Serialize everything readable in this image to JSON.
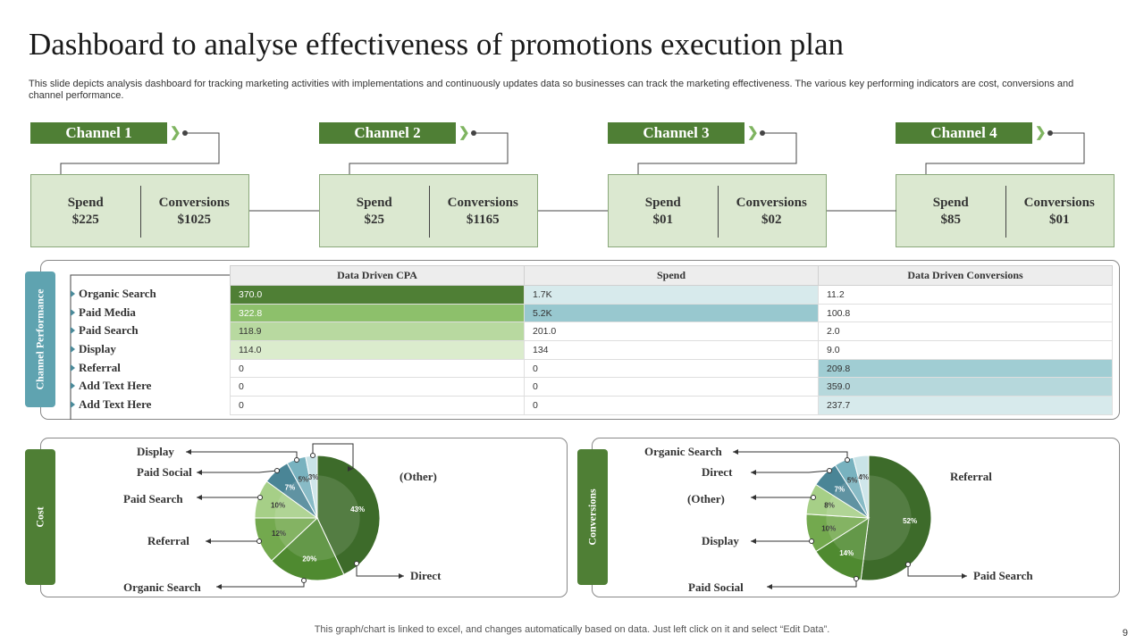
{
  "title": "Dashboard to analyse effectiveness of promotions execution plan",
  "subtitle": "This slide depicts analysis dashboard for tracking marketing activities with implementations and continuously updates data so businesses can track the marketing effectiveness. The various key performing indicators are cost, conversions and channel performance.",
  "channels": [
    {
      "name": "Channel 1",
      "spend_label": "Spend",
      "spend": "$225",
      "conv_label": "Conversions",
      "conv": "$1025"
    },
    {
      "name": "Channel 2",
      "spend_label": "Spend",
      "spend": "$25",
      "conv_label": "Conversions",
      "conv": "$1165"
    },
    {
      "name": "Channel 3",
      "spend_label": "Spend",
      "spend": "$01",
      "conv_label": "Conversions",
      "conv": "$02"
    },
    {
      "name": "Channel 4",
      "spend_label": "Spend",
      "spend": "$85",
      "conv_label": "Conversions",
      "conv": "$01"
    }
  ],
  "colors": {
    "green_dark": "#3d6b2a",
    "green": "#4f7f35",
    "green_mid": "#8dc06b",
    "green_light": "#b8d9a0",
    "green_pale": "#dbeccd",
    "teal": "#5fa3b0",
    "teal_light": "#a0cdd3",
    "teal_pale": "#d7eaec"
  },
  "performance": {
    "tab": "Channel Performance",
    "columns": [
      "Data Driven CPA",
      "Spend",
      "Data Driven Conversions"
    ],
    "rows": [
      {
        "label": "Organic Search",
        "cpa": "370.0",
        "spend": "1.7K",
        "conv": "11.2"
      },
      {
        "label": "Paid Media",
        "cpa": "322.8",
        "spend": "5.2K",
        "conv": "100.8"
      },
      {
        "label": "Paid Search",
        "cpa": "118.9",
        "spend": "201.0",
        "conv": "2.0"
      },
      {
        "label": "Display",
        "cpa": "114.0",
        "spend": "134",
        "conv": "9.0"
      },
      {
        "label": "Referral",
        "cpa": "0",
        "spend": "0",
        "conv": "209.8"
      },
      {
        "label": "Add Text Here",
        "cpa": "0",
        "spend": "0",
        "conv": "359.0"
      },
      {
        "label": "Add Text Here",
        "cpa": "0",
        "spend": "0",
        "conv": "237.7"
      }
    ]
  },
  "chart_data": [
    {
      "type": "pie",
      "title": "Cost",
      "slices": [
        {
          "name": "Direct",
          "value": 43,
          "label": "43%"
        },
        {
          "name": "Organic Search",
          "value": 20,
          "label": "20%"
        },
        {
          "name": "Referral",
          "value": 12,
          "label": "12%"
        },
        {
          "name": "Paid Search",
          "value": 10,
          "label": "10%"
        },
        {
          "name": "Paid Social",
          "value": 7,
          "label": "7%"
        },
        {
          "name": "Display",
          "value": 5,
          "label": "5%"
        },
        {
          "name": "(Other)",
          "value": 3,
          "label": "3%"
        }
      ]
    },
    {
      "type": "pie",
      "title": "Conversions",
      "slices": [
        {
          "name": "Paid Search",
          "value": 52,
          "label": "52%"
        },
        {
          "name": "Paid Social",
          "value": 14,
          "label": "14%"
        },
        {
          "name": "Display",
          "value": 10,
          "label": "10%"
        },
        {
          "name": "(Other)",
          "value": 8,
          "label": "8%"
        },
        {
          "name": "Direct",
          "value": 7,
          "label": "7%"
        },
        {
          "name": "Organic Search",
          "value": 5,
          "label": "5%"
        },
        {
          "name": "Referral",
          "value": 4,
          "label": "4%"
        }
      ]
    }
  ],
  "footer": "This graph/chart is linked to excel, and changes automatically based on data. Just left click on it and select “Edit Data”.",
  "page_number": "9"
}
